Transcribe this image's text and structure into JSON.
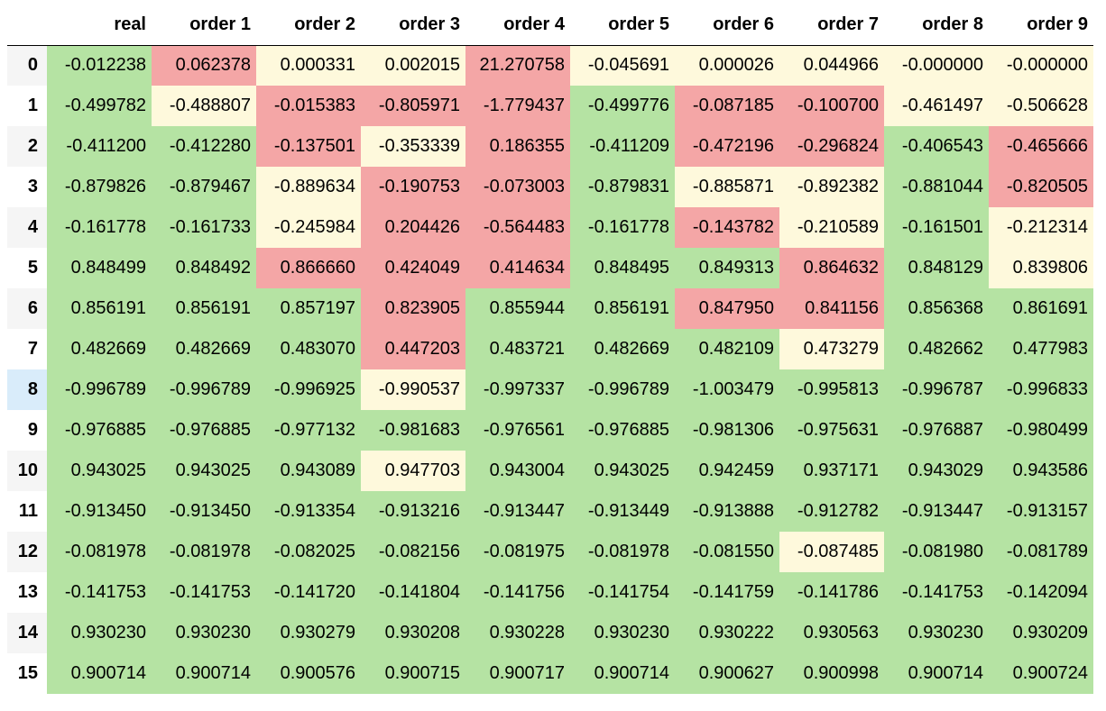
{
  "table": {
    "index_header": "",
    "columns": [
      "real",
      "order 1",
      "order 2",
      "order 3",
      "order 4",
      "order 5",
      "order 6",
      "order 7",
      "order 8",
      "order 9"
    ],
    "selected_row": "8",
    "cell_colors": {
      "g": "#b5e3a3",
      "y": "#fef9dc",
      "r": "#f4a6a6"
    },
    "rows": [
      {
        "index": "0",
        "values": [
          "-0.012238",
          "0.062378",
          "0.000331",
          "0.002015",
          "21.270758",
          "-0.045691",
          "0.000026",
          "0.044966",
          "-0.000000",
          "-0.000000"
        ],
        "colors": [
          "g",
          "r",
          "y",
          "y",
          "r",
          "y",
          "y",
          "y",
          "y",
          "y"
        ]
      },
      {
        "index": "1",
        "values": [
          "-0.499782",
          "-0.488807",
          "-0.015383",
          "-0.805971",
          "-1.779437",
          "-0.499776",
          "-0.087185",
          "-0.100700",
          "-0.461497",
          "-0.506628"
        ],
        "colors": [
          "g",
          "y",
          "r",
          "r",
          "r",
          "g",
          "r",
          "r",
          "y",
          "y"
        ]
      },
      {
        "index": "2",
        "values": [
          "-0.411200",
          "-0.412280",
          "-0.137501",
          "-0.353339",
          "0.186355",
          "-0.411209",
          "-0.472196",
          "-0.296824",
          "-0.406543",
          "-0.465666"
        ],
        "colors": [
          "g",
          "g",
          "r",
          "y",
          "r",
          "g",
          "r",
          "r",
          "g",
          "r"
        ]
      },
      {
        "index": "3",
        "values": [
          "-0.879826",
          "-0.879467",
          "-0.889634",
          "-0.190753",
          "-0.073003",
          "-0.879831",
          "-0.885871",
          "-0.892382",
          "-0.881044",
          "-0.820505"
        ],
        "colors": [
          "g",
          "g",
          "y",
          "r",
          "r",
          "g",
          "y",
          "y",
          "g",
          "r"
        ]
      },
      {
        "index": "4",
        "values": [
          "-0.161778",
          "-0.161733",
          "-0.245984",
          "0.204426",
          "-0.564483",
          "-0.161778",
          "-0.143782",
          "-0.210589",
          "-0.161501",
          "-0.212314"
        ],
        "colors": [
          "g",
          "g",
          "y",
          "r",
          "r",
          "g",
          "r",
          "y",
          "g",
          "y"
        ]
      },
      {
        "index": "5",
        "values": [
          "0.848499",
          "0.848492",
          "0.866660",
          "0.424049",
          "0.414634",
          "0.848495",
          "0.849313",
          "0.864632",
          "0.848129",
          "0.839806"
        ],
        "colors": [
          "g",
          "g",
          "r",
          "r",
          "r",
          "g",
          "g",
          "r",
          "g",
          "y"
        ]
      },
      {
        "index": "6",
        "values": [
          "0.856191",
          "0.856191",
          "0.857197",
          "0.823905",
          "0.855944",
          "0.856191",
          "0.847950",
          "0.841156",
          "0.856368",
          "0.861691"
        ],
        "colors": [
          "g",
          "g",
          "g",
          "r",
          "g",
          "g",
          "r",
          "r",
          "g",
          "g"
        ]
      },
      {
        "index": "7",
        "values": [
          "0.482669",
          "0.482669",
          "0.483070",
          "0.447203",
          "0.483721",
          "0.482669",
          "0.482109",
          "0.473279",
          "0.482662",
          "0.477983"
        ],
        "colors": [
          "g",
          "g",
          "g",
          "r",
          "g",
          "g",
          "g",
          "y",
          "g",
          "g"
        ]
      },
      {
        "index": "8",
        "values": [
          "-0.996789",
          "-0.996789",
          "-0.996925",
          "-0.990537",
          "-0.997337",
          "-0.996789",
          "-1.003479",
          "-0.995813",
          "-0.996787",
          "-0.996833"
        ],
        "colors": [
          "g",
          "g",
          "g",
          "y",
          "g",
          "g",
          "g",
          "g",
          "g",
          "g"
        ]
      },
      {
        "index": "9",
        "values": [
          "-0.976885",
          "-0.976885",
          "-0.977132",
          "-0.981683",
          "-0.976561",
          "-0.976885",
          "-0.981306",
          "-0.975631",
          "-0.976887",
          "-0.980499"
        ],
        "colors": [
          "g",
          "g",
          "g",
          "g",
          "g",
          "g",
          "g",
          "g",
          "g",
          "g"
        ]
      },
      {
        "index": "10",
        "values": [
          "0.943025",
          "0.943025",
          "0.943089",
          "0.947703",
          "0.943004",
          "0.943025",
          "0.942459",
          "0.937171",
          "0.943029",
          "0.943586"
        ],
        "colors": [
          "g",
          "g",
          "g",
          "y",
          "g",
          "g",
          "g",
          "g",
          "g",
          "g"
        ]
      },
      {
        "index": "11",
        "values": [
          "-0.913450",
          "-0.913450",
          "-0.913354",
          "-0.913216",
          "-0.913447",
          "-0.913449",
          "-0.913888",
          "-0.912782",
          "-0.913447",
          "-0.913157"
        ],
        "colors": [
          "g",
          "g",
          "g",
          "g",
          "g",
          "g",
          "g",
          "g",
          "g",
          "g"
        ]
      },
      {
        "index": "12",
        "values": [
          "-0.081978",
          "-0.081978",
          "-0.082025",
          "-0.082156",
          "-0.081975",
          "-0.081978",
          "-0.081550",
          "-0.087485",
          "-0.081980",
          "-0.081789"
        ],
        "colors": [
          "g",
          "g",
          "g",
          "g",
          "g",
          "g",
          "g",
          "y",
          "g",
          "g"
        ]
      },
      {
        "index": "13",
        "values": [
          "-0.141753",
          "-0.141753",
          "-0.141720",
          "-0.141804",
          "-0.141756",
          "-0.141754",
          "-0.141759",
          "-0.141786",
          "-0.141753",
          "-0.142094"
        ],
        "colors": [
          "g",
          "g",
          "g",
          "g",
          "g",
          "g",
          "g",
          "g",
          "g",
          "g"
        ]
      },
      {
        "index": "14",
        "values": [
          "0.930230",
          "0.930230",
          "0.930279",
          "0.930208",
          "0.930228",
          "0.930230",
          "0.930222",
          "0.930563",
          "0.930230",
          "0.930209"
        ],
        "colors": [
          "g",
          "g",
          "g",
          "g",
          "g",
          "g",
          "g",
          "g",
          "g",
          "g"
        ]
      },
      {
        "index": "15",
        "values": [
          "0.900714",
          "0.900714",
          "0.900576",
          "0.900715",
          "0.900717",
          "0.900714",
          "0.900627",
          "0.900998",
          "0.900714",
          "0.900724"
        ],
        "colors": [
          "g",
          "g",
          "g",
          "g",
          "g",
          "g",
          "g",
          "g",
          "g",
          "g"
        ]
      }
    ]
  }
}
